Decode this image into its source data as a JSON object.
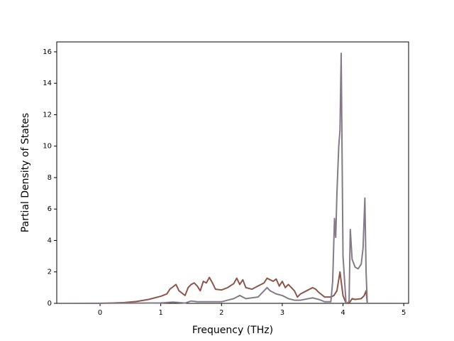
{
  "chart_data": {
    "type": "line",
    "xlabel": "Frequency (THz)",
    "ylabel": "Partial Density of States",
    "xlim": [
      -0.713,
      5.08
    ],
    "ylim": [
      0,
      16.63
    ],
    "xticks": [
      0,
      1,
      2,
      3,
      4,
      5
    ],
    "yticks": [
      0,
      2,
      4,
      6,
      8,
      10,
      12,
      14,
      16
    ],
    "series": [
      {
        "color": "#8c564b",
        "x": [
          -0.45,
          0,
          0.2,
          0.4,
          0.6,
          0.8,
          0.9,
          1.0,
          1.1,
          1.15,
          1.2,
          1.25,
          1.3,
          1.4,
          1.45,
          1.5,
          1.55,
          1.6,
          1.65,
          1.7,
          1.75,
          1.8,
          1.85,
          1.9,
          2.0,
          2.1,
          2.2,
          2.25,
          2.3,
          2.35,
          2.4,
          2.5,
          2.6,
          2.7,
          2.75,
          2.8,
          2.85,
          2.9,
          2.95,
          3.0,
          3.05,
          3.1,
          3.2,
          3.25,
          3.3,
          3.4,
          3.5,
          3.55,
          3.6,
          3.7,
          3.8,
          3.85,
          3.9,
          3.95,
          4.0,
          4.05,
          4.1,
          4.15,
          4.2,
          4.3,
          4.35,
          4.38,
          4.4,
          4.82
        ],
        "values": [
          0,
          0,
          0.02,
          0.05,
          0.12,
          0.25,
          0.35,
          0.45,
          0.6,
          0.9,
          1.05,
          1.2,
          0.8,
          0.5,
          1.0,
          1.2,
          1.3,
          1.1,
          0.8,
          1.4,
          1.3,
          1.65,
          1.3,
          0.9,
          0.85,
          1.0,
          1.25,
          1.6,
          1.2,
          1.5,
          1.0,
          0.9,
          1.1,
          1.3,
          1.6,
          1.5,
          1.4,
          1.55,
          1.1,
          1.4,
          1.0,
          1.2,
          0.8,
          0.4,
          0.6,
          0.8,
          1.0,
          0.9,
          0.7,
          0.4,
          0.4,
          0.5,
          0.8,
          2.0,
          0.5,
          0,
          0,
          0.3,
          0.25,
          0.3,
          0.5,
          0.8,
          0,
          0
        ]
      },
      {
        "color": "#857b86",
        "x": [
          -0.45,
          0.5,
          1.0,
          1.2,
          1.3,
          1.4,
          1.5,
          1.6,
          1.8,
          2.0,
          2.1,
          2.2,
          2.3,
          2.4,
          2.6,
          2.7,
          2.75,
          2.8,
          2.9,
          3.0,
          3.1,
          3.2,
          3.3,
          3.5,
          3.6,
          3.7,
          3.8,
          3.83,
          3.86,
          3.88,
          3.9,
          3.93,
          3.95,
          3.97,
          4.0,
          4.05,
          4.1,
          4.12,
          4.15,
          4.2,
          4.25,
          4.3,
          4.33,
          4.36,
          4.38,
          4.4,
          4.82
        ],
        "values": [
          0,
          0.01,
          0.03,
          0.08,
          0.05,
          0.02,
          0.15,
          0.1,
          0.1,
          0.1,
          0.2,
          0.3,
          0.5,
          0.3,
          0.4,
          0.8,
          1.0,
          0.8,
          0.6,
          0.5,
          0.3,
          0.2,
          0.2,
          0.35,
          0.25,
          0.1,
          0.1,
          1.4,
          5.4,
          4.2,
          7.0,
          10.0,
          11.0,
          15.9,
          3.0,
          0,
          0.1,
          4.7,
          2.8,
          2.3,
          2.2,
          2.5,
          3.5,
          6.7,
          2.0,
          0,
          0
        ]
      }
    ]
  }
}
